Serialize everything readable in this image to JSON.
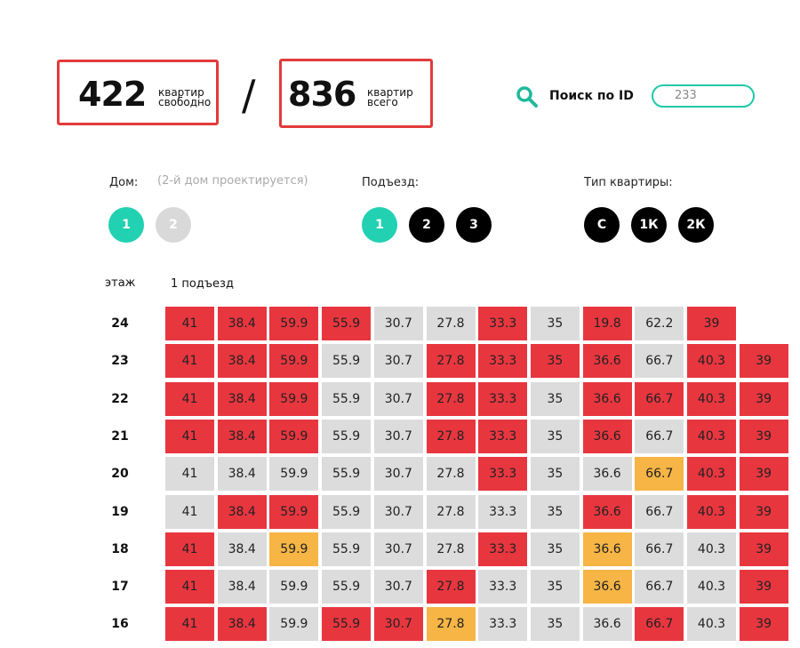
{
  "header": {
    "free_count": "422",
    "free_label_1": "квартир",
    "free_label_2": "свободно",
    "separator": "/",
    "total_count": "836",
    "total_label_1": "квартир",
    "total_label_2": "всего",
    "search_label": "Поиск по ID",
    "search_value": "233"
  },
  "filters": {
    "house": {
      "label": "Дом:",
      "note": "(2-й дом проектируется)",
      "options": [
        {
          "text": "1",
          "color": "#22d1b2"
        },
        {
          "text": "2",
          "color": "#d9d9d9"
        }
      ]
    },
    "entrance": {
      "label": "Подъезд:",
      "options": [
        {
          "text": "1",
          "color": "#22d1b2"
        },
        {
          "text": "2",
          "color": "#000000"
        },
        {
          "text": "3",
          "color": "#000000"
        }
      ]
    },
    "type": {
      "label": "Тип квартиры:",
      "options": [
        {
          "text": "С",
          "color": "#000000"
        },
        {
          "text": "1К",
          "color": "#000000"
        },
        {
          "text": "2К",
          "color": "#000000"
        }
      ]
    }
  },
  "grid": {
    "floor_header": "этаж",
    "entrance_header": "1 подъезд",
    "floors": [
      {
        "label": "24",
        "cells": [
          {
            "area": 41,
            "color": "#e8363f"
          },
          {
            "area": 38.4,
            "color": "#e8363f"
          },
          {
            "area": 59.9,
            "color": "#e8363f"
          },
          {
            "area": 55.9,
            "color": "#e8363f"
          },
          {
            "area": 30.7,
            "color": "#dcdcdc"
          },
          {
            "area": 27.8,
            "color": "#dcdcdc"
          },
          {
            "area": 33.3,
            "color": "#e8363f"
          },
          {
            "area": 35,
            "color": "#dcdcdc"
          },
          {
            "area": 19.8,
            "color": "#e8363f"
          },
          {
            "area": 62.2,
            "color": "#dcdcdc"
          },
          {
            "area": 39,
            "color": "#e8363f"
          }
        ]
      },
      {
        "label": "23",
        "cells": [
          {
            "area": 41,
            "color": "#e8363f"
          },
          {
            "area": 38.4,
            "color": "#e8363f"
          },
          {
            "area": 59.9,
            "color": "#e8363f"
          },
          {
            "area": 55.9,
            "color": "#dcdcdc"
          },
          {
            "area": 30.7,
            "color": "#dcdcdc"
          },
          {
            "area": 27.8,
            "color": "#e8363f"
          },
          {
            "area": 33.3,
            "color": "#e8363f"
          },
          {
            "area": 35,
            "color": "#e8363f"
          },
          {
            "area": 36.6,
            "color": "#e8363f"
          },
          {
            "area": 66.7,
            "color": "#dcdcdc"
          },
          {
            "area": 40.3,
            "color": "#e8363f"
          },
          {
            "area": 39,
            "color": "#e8363f"
          }
        ]
      },
      {
        "label": "22",
        "cells": [
          {
            "area": 41,
            "color": "#e8363f"
          },
          {
            "area": 38.4,
            "color": "#e8363f"
          },
          {
            "area": 59.9,
            "color": "#e8363f"
          },
          {
            "area": 55.9,
            "color": "#dcdcdc"
          },
          {
            "area": 30.7,
            "color": "#dcdcdc"
          },
          {
            "area": 27.8,
            "color": "#e8363f"
          },
          {
            "area": 33.3,
            "color": "#e8363f"
          },
          {
            "area": 35,
            "color": "#dcdcdc"
          },
          {
            "area": 36.6,
            "color": "#e8363f"
          },
          {
            "area": 66.7,
            "color": "#e8363f"
          },
          {
            "area": 40.3,
            "color": "#e8363f"
          },
          {
            "area": 39,
            "color": "#e8363f"
          }
        ]
      },
      {
        "label": "21",
        "cells": [
          {
            "area": 41,
            "color": "#e8363f"
          },
          {
            "area": 38.4,
            "color": "#e8363f"
          },
          {
            "area": 59.9,
            "color": "#e8363f"
          },
          {
            "area": 55.9,
            "color": "#dcdcdc"
          },
          {
            "area": 30.7,
            "color": "#dcdcdc"
          },
          {
            "area": 27.8,
            "color": "#e8363f"
          },
          {
            "area": 33.3,
            "color": "#e8363f"
          },
          {
            "area": 35,
            "color": "#dcdcdc"
          },
          {
            "area": 36.6,
            "color": "#e8363f"
          },
          {
            "area": 66.7,
            "color": "#dcdcdc"
          },
          {
            "area": 40.3,
            "color": "#e8363f"
          },
          {
            "area": 39,
            "color": "#e8363f"
          }
        ]
      },
      {
        "label": "20",
        "cells": [
          {
            "area": 41,
            "color": "#dcdcdc"
          },
          {
            "area": 38.4,
            "color": "#dcdcdc"
          },
          {
            "area": 59.9,
            "color": "#dcdcdc"
          },
          {
            "area": 55.9,
            "color": "#dcdcdc"
          },
          {
            "area": 30.7,
            "color": "#dcdcdc"
          },
          {
            "area": 27.8,
            "color": "#dcdcdc"
          },
          {
            "area": 33.3,
            "color": "#e8363f"
          },
          {
            "area": 35,
            "color": "#dcdcdc"
          },
          {
            "area": 36.6,
            "color": "#dcdcdc"
          },
          {
            "area": 66.7,
            "color": "#f6b545"
          },
          {
            "area": 40.3,
            "color": "#e8363f"
          },
          {
            "area": 39,
            "color": "#e8363f"
          }
        ]
      },
      {
        "label": "19",
        "cells": [
          {
            "area": 41,
            "color": "#dcdcdc"
          },
          {
            "area": 38.4,
            "color": "#e8363f"
          },
          {
            "area": 59.9,
            "color": "#e8363f"
          },
          {
            "area": 55.9,
            "color": "#dcdcdc"
          },
          {
            "area": 30.7,
            "color": "#dcdcdc"
          },
          {
            "area": 27.8,
            "color": "#dcdcdc"
          },
          {
            "area": 33.3,
            "color": "#dcdcdc"
          },
          {
            "area": 35,
            "color": "#dcdcdc"
          },
          {
            "area": 36.6,
            "color": "#e8363f"
          },
          {
            "area": 66.7,
            "color": "#dcdcdc"
          },
          {
            "area": 40.3,
            "color": "#e8363f"
          },
          {
            "area": 39,
            "color": "#e8363f"
          }
        ]
      },
      {
        "label": "18",
        "cells": [
          {
            "area": 41,
            "color": "#e8363f"
          },
          {
            "area": 38.4,
            "color": "#dcdcdc"
          },
          {
            "area": 59.9,
            "color": "#f6b545"
          },
          {
            "area": 55.9,
            "color": "#dcdcdc"
          },
          {
            "area": 30.7,
            "color": "#dcdcdc"
          },
          {
            "area": 27.8,
            "color": "#dcdcdc"
          },
          {
            "area": 33.3,
            "color": "#e8363f"
          },
          {
            "area": 35,
            "color": "#dcdcdc"
          },
          {
            "area": 36.6,
            "color": "#f6b545"
          },
          {
            "area": 66.7,
            "color": "#dcdcdc"
          },
          {
            "area": 40.3,
            "color": "#dcdcdc"
          },
          {
            "area": 39,
            "color": "#e8363f"
          }
        ]
      },
      {
        "label": "17",
        "cells": [
          {
            "area": 41,
            "color": "#e8363f"
          },
          {
            "area": 38.4,
            "color": "#dcdcdc"
          },
          {
            "area": 59.9,
            "color": "#dcdcdc"
          },
          {
            "area": 55.9,
            "color": "#dcdcdc"
          },
          {
            "area": 30.7,
            "color": "#dcdcdc"
          },
          {
            "area": 27.8,
            "color": "#e8363f"
          },
          {
            "area": 33.3,
            "color": "#dcdcdc"
          },
          {
            "area": 35,
            "color": "#dcdcdc"
          },
          {
            "area": 36.6,
            "color": "#f6b545"
          },
          {
            "area": 66.7,
            "color": "#dcdcdc"
          },
          {
            "area": 40.3,
            "color": "#dcdcdc"
          },
          {
            "area": 39,
            "color": "#e8363f"
          }
        ]
      },
      {
        "label": "16",
        "cells": [
          {
            "area": 41,
            "color": "#e8363f"
          },
          {
            "area": 38.4,
            "color": "#e8363f"
          },
          {
            "area": 59.9,
            "color": "#dcdcdc"
          },
          {
            "area": 55.9,
            "color": "#e8363f"
          },
          {
            "area": 30.7,
            "color": "#e8363f"
          },
          {
            "area": 27.8,
            "color": "#f6b545"
          },
          {
            "area": 33.3,
            "color": "#dcdcdc"
          },
          {
            "area": 35,
            "color": "#dcdcdc"
          },
          {
            "area": 36.6,
            "color": "#dcdcdc"
          },
          {
            "area": 66.7,
            "color": "#e8363f"
          },
          {
            "area": 40.3,
            "color": "#dcdcdc"
          },
          {
            "area": 39,
            "color": "#e8363f"
          }
        ]
      }
    ]
  }
}
